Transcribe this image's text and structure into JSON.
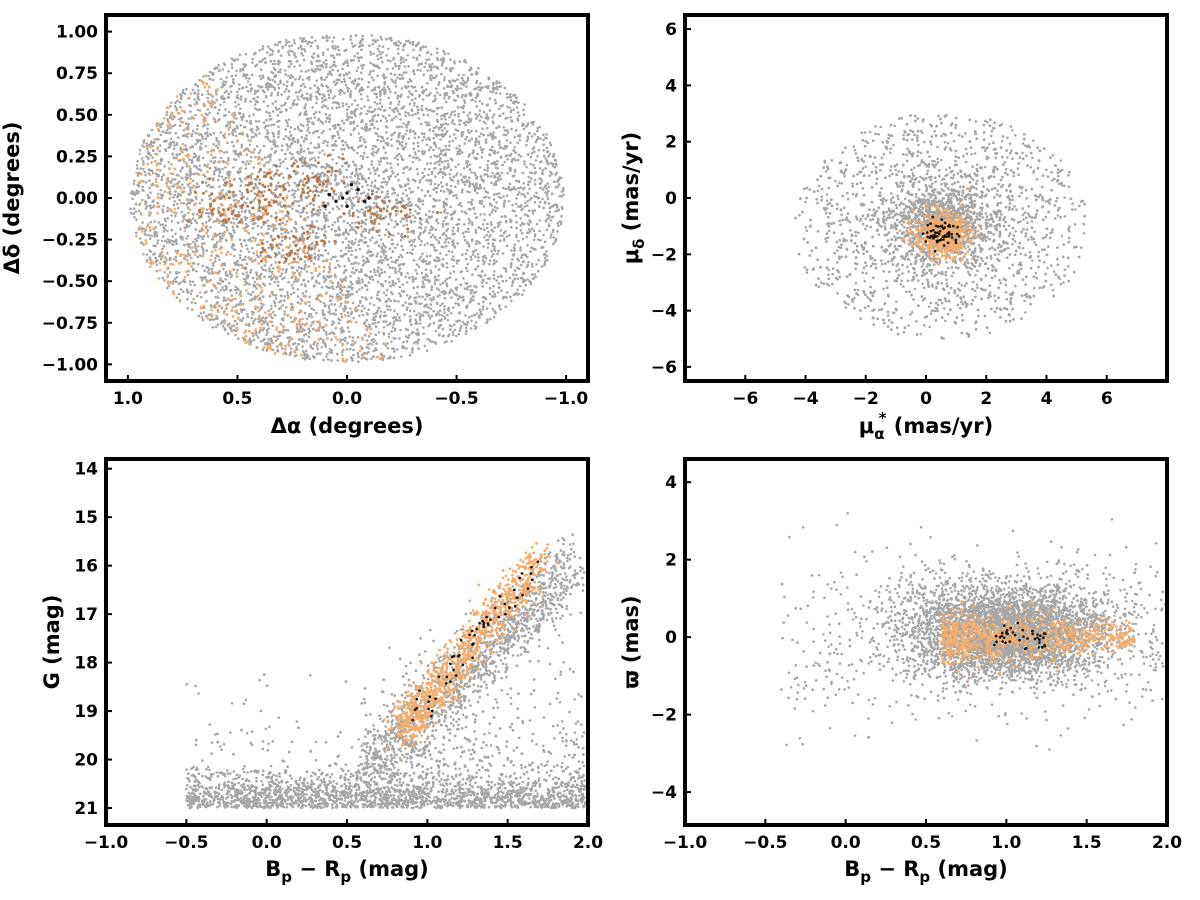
{
  "colors": {
    "field": "#a6a6a6",
    "members_light": "#f6ad6c",
    "members_mid": "#b8774a",
    "members_core": "#111111"
  },
  "chart_data": [
    {
      "type": "scatter",
      "id": "sky",
      "xlabel": "Δα (degrees)",
      "ylabel": "Δδ (degrees)",
      "xlim": [
        1.1,
        -1.1
      ],
      "ylim": [
        -1.1,
        1.1
      ],
      "xticks": [
        1.0,
        0.5,
        0.0,
        -0.5,
        -1.0
      ],
      "xtick_labels": [
        "1.0",
        "0.5",
        "0.0",
        "−0.5",
        "−1.0"
      ],
      "yticks": [
        1.0,
        0.75,
        0.5,
        0.25,
        0.0,
        -0.25,
        -0.5,
        -0.75,
        -1.0
      ],
      "ytick_labels": [
        "1.00",
        "0.75",
        "0.50",
        "0.25",
        "0.00",
        "−0.25",
        "−0.50",
        "−0.75",
        "−1.00"
      ],
      "grid": false,
      "series": [
        {
          "role": "field stars",
          "color": "#a6a6a6",
          "distribution": "uniform disk, center (0,0), radius 1.0 deg",
          "approx_count": 9000
        },
        {
          "role": "members (orange)",
          "color": "#f6ad6c",
          "distribution": "concentrated toward east/south-east (Δα 0.2–1.0, Δδ −1.0–0.5)"
        },
        {
          "role": "members (brown)",
          "color": "#b8774a",
          "distribution": "clumps around Δα 0.1–0.7, Δδ −0.4–0.2"
        },
        {
          "role": "core members (black)",
          "color": "#111111",
          "points": [
            [
              0.0,
              0.03
            ],
            [
              -0.05,
              0.05
            ],
            [
              0.05,
              -0.02
            ],
            [
              0.02,
              0.0
            ],
            [
              -0.02,
              0.08
            ],
            [
              0.08,
              0.02
            ],
            [
              -0.08,
              -0.02
            ],
            [
              0.1,
              -0.05
            ],
            [
              -0.1,
              0.0
            ],
            [
              0.0,
              -0.05
            ]
          ]
        }
      ]
    },
    {
      "type": "scatter",
      "id": "proper_motion",
      "xlabel": "μα* (mas/yr)",
      "xlabel_main": "μ",
      "xlabel_sub": "α",
      "xlabel_sup": "*",
      "xlabel_rest": " (mas/yr)",
      "ylabel": "μδ (mas/yr)",
      "ylabel_main": "μ",
      "ylabel_sub": "δ",
      "ylabel_rest": " (mas/yr)",
      "xlim": [
        -8,
        8
      ],
      "ylim": [
        -6.5,
        6.5
      ],
      "xticks": [
        -6,
        -4,
        -2,
        0,
        2,
        4,
        6
      ],
      "xtick_labels": [
        "−6",
        "−4",
        "−2",
        "0",
        "2",
        "4",
        "6"
      ],
      "yticks": [
        6,
        4,
        2,
        0,
        -2,
        -4,
        -6
      ],
      "ytick_labels": [
        "6",
        "4",
        "2",
        "0",
        "−2",
        "−4",
        "−6"
      ],
      "grid": false,
      "series": [
        {
          "role": "field stars",
          "color": "#a6a6a6",
          "distribution": "disk centered (0.5, -1.2), radius 5 mas/yr, dense core"
        },
        {
          "role": "members (orange)",
          "color": "#f6ad6c",
          "center": [
            0.5,
            -1.3
          ],
          "spread": 0.45
        },
        {
          "role": "core members (black)",
          "color": "#111111",
          "center": [
            0.55,
            -1.25
          ],
          "spread": 0.25
        }
      ]
    },
    {
      "type": "scatter",
      "id": "cmd",
      "xlabel": "Bp − Rp (mag)",
      "xlabel_main": "B",
      "xlabel_sub1": "p",
      "xlabel_mid": " − R",
      "xlabel_sub2": "p",
      "xlabel_rest": " (mag)",
      "ylabel": "G (mag)",
      "xlim": [
        -1.0,
        2.0
      ],
      "ylim": [
        21.35,
        13.8
      ],
      "xticks": [
        -1.0,
        -0.5,
        0.0,
        0.5,
        1.0,
        1.5,
        2.0
      ],
      "xtick_labels": [
        "−1.0",
        "−0.5",
        "0.0",
        "0.5",
        "1.0",
        "1.5",
        "2.0"
      ],
      "yticks": [
        21,
        20,
        19,
        18,
        17,
        16,
        15,
        14
      ],
      "ytick_labels": [
        "21",
        "20",
        "19",
        "18",
        "17",
        "16",
        "15",
        "14"
      ],
      "grid": false,
      "sequence": [
        [
          0.85,
          20.0
        ],
        [
          0.95,
          19.4
        ],
        [
          1.05,
          18.9
        ],
        [
          1.15,
          18.3
        ],
        [
          1.25,
          17.7
        ],
        [
          1.35,
          17.2
        ],
        [
          1.45,
          16.8
        ],
        [
          1.55,
          16.4
        ],
        [
          1.65,
          16.2
        ]
      ],
      "series": [
        {
          "role": "field stars",
          "color": "#a6a6a6",
          "distribution": "dense band at G≈20.5–21, diagonal spread"
        },
        {
          "role": "members (orange)",
          "color": "#f6ad6c",
          "distribution": "main sequence from (0.9, 19.8) to (1.7, 16.2)"
        },
        {
          "role": "core members (black)",
          "color": "#111111",
          "distribution": "along main sequence"
        }
      ]
    },
    {
      "type": "scatter",
      "id": "parallax",
      "xlabel": "Bp − Rp (mag)",
      "xlabel_main": "B",
      "xlabel_sub1": "p",
      "xlabel_mid": " − R",
      "xlabel_sub2": "p",
      "xlabel_rest": " (mag)",
      "ylabel": "ϖ (mas)",
      "xlim": [
        -1.0,
        2.0
      ],
      "ylim": [
        -4.85,
        4.6
      ],
      "xticks": [
        -1.0,
        -0.5,
        0.0,
        0.5,
        1.0,
        1.5,
        2.0
      ],
      "xtick_labels": [
        "−1.0",
        "−0.5",
        "0.0",
        "0.5",
        "1.0",
        "1.5",
        "2.0"
      ],
      "yticks": [
        4,
        2,
        0,
        -2,
        -4
      ],
      "ytick_labels": [
        "4",
        "2",
        "0",
        "−2",
        "−4"
      ],
      "grid": false,
      "series": [
        {
          "role": "field stars",
          "color": "#a6a6a6",
          "distribution": "centered near ϖ=0.3 at colour ~1.0, spread ±1.5"
        },
        {
          "role": "members (orange)",
          "color": "#f6ad6c",
          "distribution": "ϖ≈0.0, colour 0.7–1.8, tail to the right"
        },
        {
          "role": "core members (black)",
          "color": "#111111",
          "distribution": "ϖ≈0.0, colour 0.9–1.2"
        }
      ]
    }
  ]
}
